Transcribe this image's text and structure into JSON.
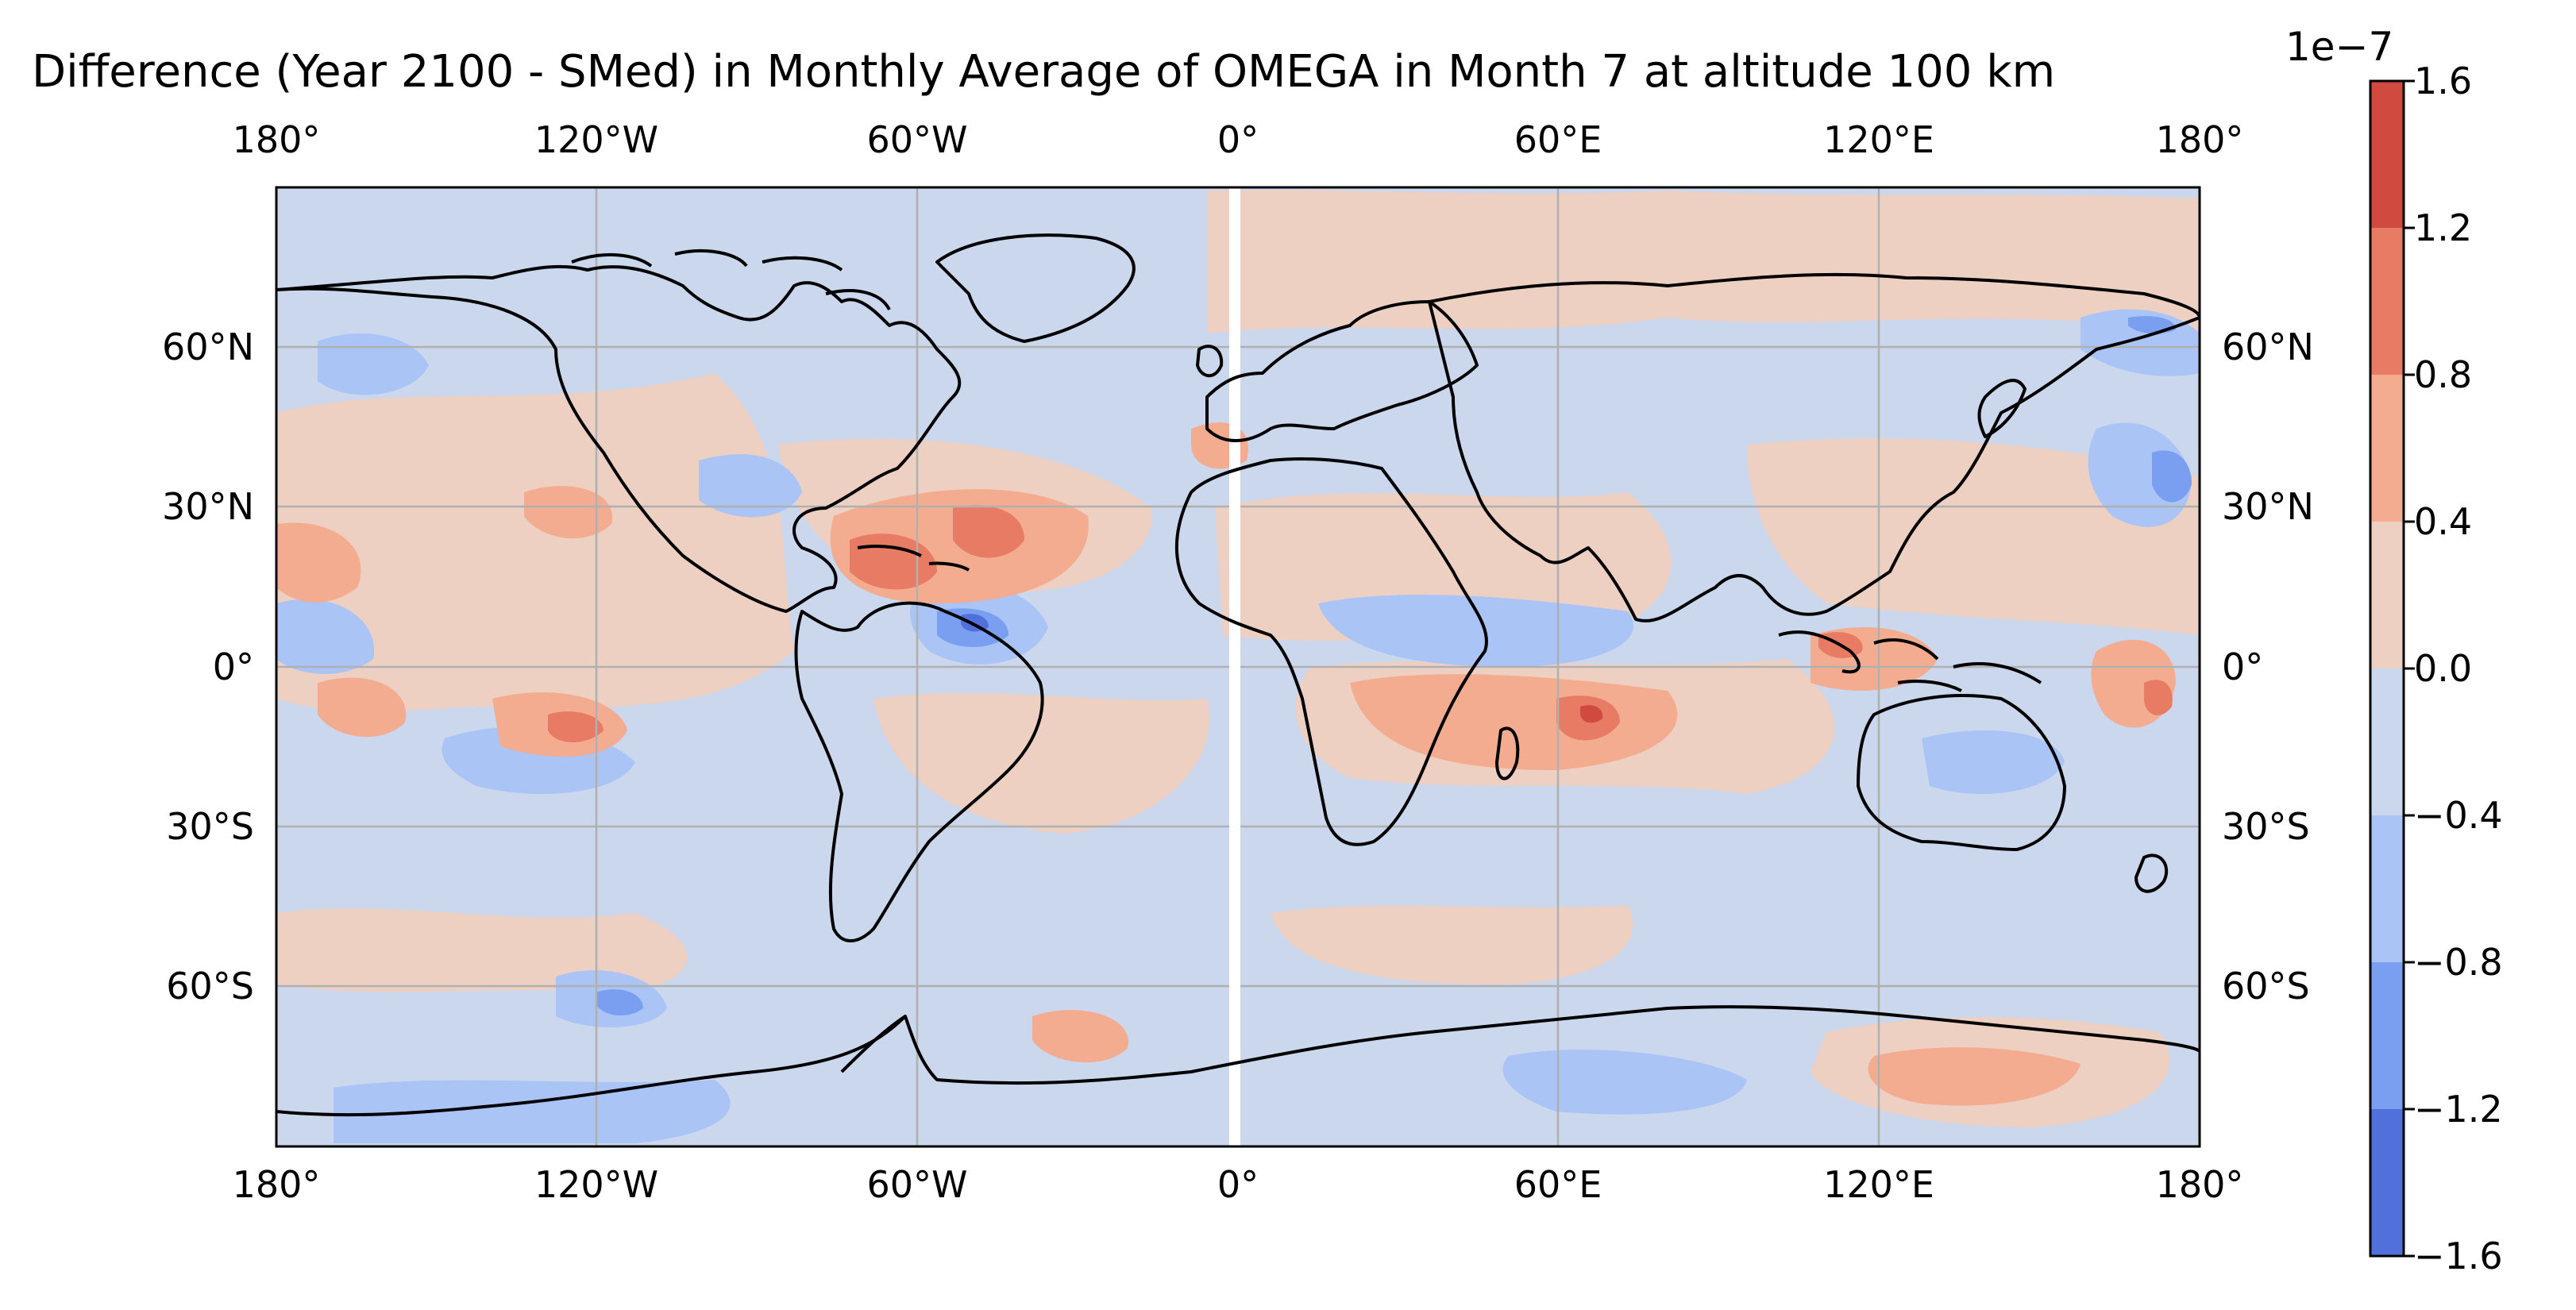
{
  "title": "Difference (Year 2100 - SMed) in Monthly Average of OMEGA in Month 7 at altitude 100 km",
  "colorbar": {
    "offset_label": "1e−7",
    "ticks": [
      "1.6",
      "1.2",
      "0.8",
      "0.4",
      "0.0",
      "−0.4",
      "−0.8",
      "−1.2",
      "−1.6"
    ],
    "colors": [
      "#d14a3f",
      "#e87b64",
      "#f4ac90",
      "#edd0c2",
      "#cad7ec",
      "#a9c4f5",
      "#7b9ff0",
      "#5270db"
    ]
  },
  "map": {
    "projection": "PlateCarree",
    "longitude_labels_top": [
      "180°",
      "120°W",
      "60°W",
      "0°",
      "60°E",
      "120°E",
      "180°"
    ],
    "longitude_labels_bottom": [
      "180°",
      "120°W",
      "60°W",
      "0°",
      "60°E",
      "120°E",
      "180°"
    ],
    "latitude_labels_left": [
      "60°N",
      "30°N",
      "0°",
      "30°S",
      "60°S"
    ],
    "latitude_labels_right": [
      "60°N",
      "30°N",
      "0°",
      "30°S",
      "60°S"
    ],
    "gridlines": true,
    "coastlines": true
  },
  "chart_data": {
    "type": "heatmap",
    "title": "Difference (Year 2100 - SMed) in Monthly Average of OMEGA in Month 7 at altitude 100 km",
    "variable": "OMEGA",
    "value_range": [
      -1.6e-07,
      1.6e-07
    ],
    "levels": [
      -1.6e-07,
      -1.2e-07,
      -8e-08,
      -4e-08,
      0.0,
      4e-08,
      8e-08,
      1.2e-07,
      1.6e-07
    ],
    "xlim": [
      -180,
      180
    ],
    "ylim": [
      -90,
      90
    ],
    "features": [
      {
        "lon": -42,
        "lat": 24,
        "value": 1e-07
      },
      {
        "lon": -63,
        "lat": 15,
        "value": 1e-07
      },
      {
        "lon": -45,
        "lat": 7,
        "value": -1.3e-07
      },
      {
        "lon": 65,
        "lat": -10,
        "value": 1.1e-07
      },
      {
        "lon": -129,
        "lat": -10,
        "value": 1e-07
      },
      {
        "lon": 122,
        "lat": 0,
        "value": 1e-07
      },
      {
        "lon": 161,
        "lat": -7,
        "value": 1e-07
      },
      {
        "lon": 170,
        "lat": 35,
        "value": -1.2e-07
      },
      {
        "lon": 167,
        "lat": 63,
        "value": -1e-07
      },
      {
        "lon": -165,
        "lat": 53,
        "value": -9e-08
      },
      {
        "lon": -122,
        "lat": -65,
        "value": -1e-07
      },
      {
        "lon": 68,
        "lat": -79,
        "value": -1e-07
      },
      {
        "lon": 132,
        "lat": -75,
        "value": 7e-08
      },
      {
        "lon": -32,
        "lat": -74,
        "value": 9e-08
      },
      {
        "lon": 2,
        "lat": 40,
        "value": 6e-08
      },
      {
        "lon": 50,
        "lat": 5,
        "value": -6e-08
      }
    ]
  }
}
